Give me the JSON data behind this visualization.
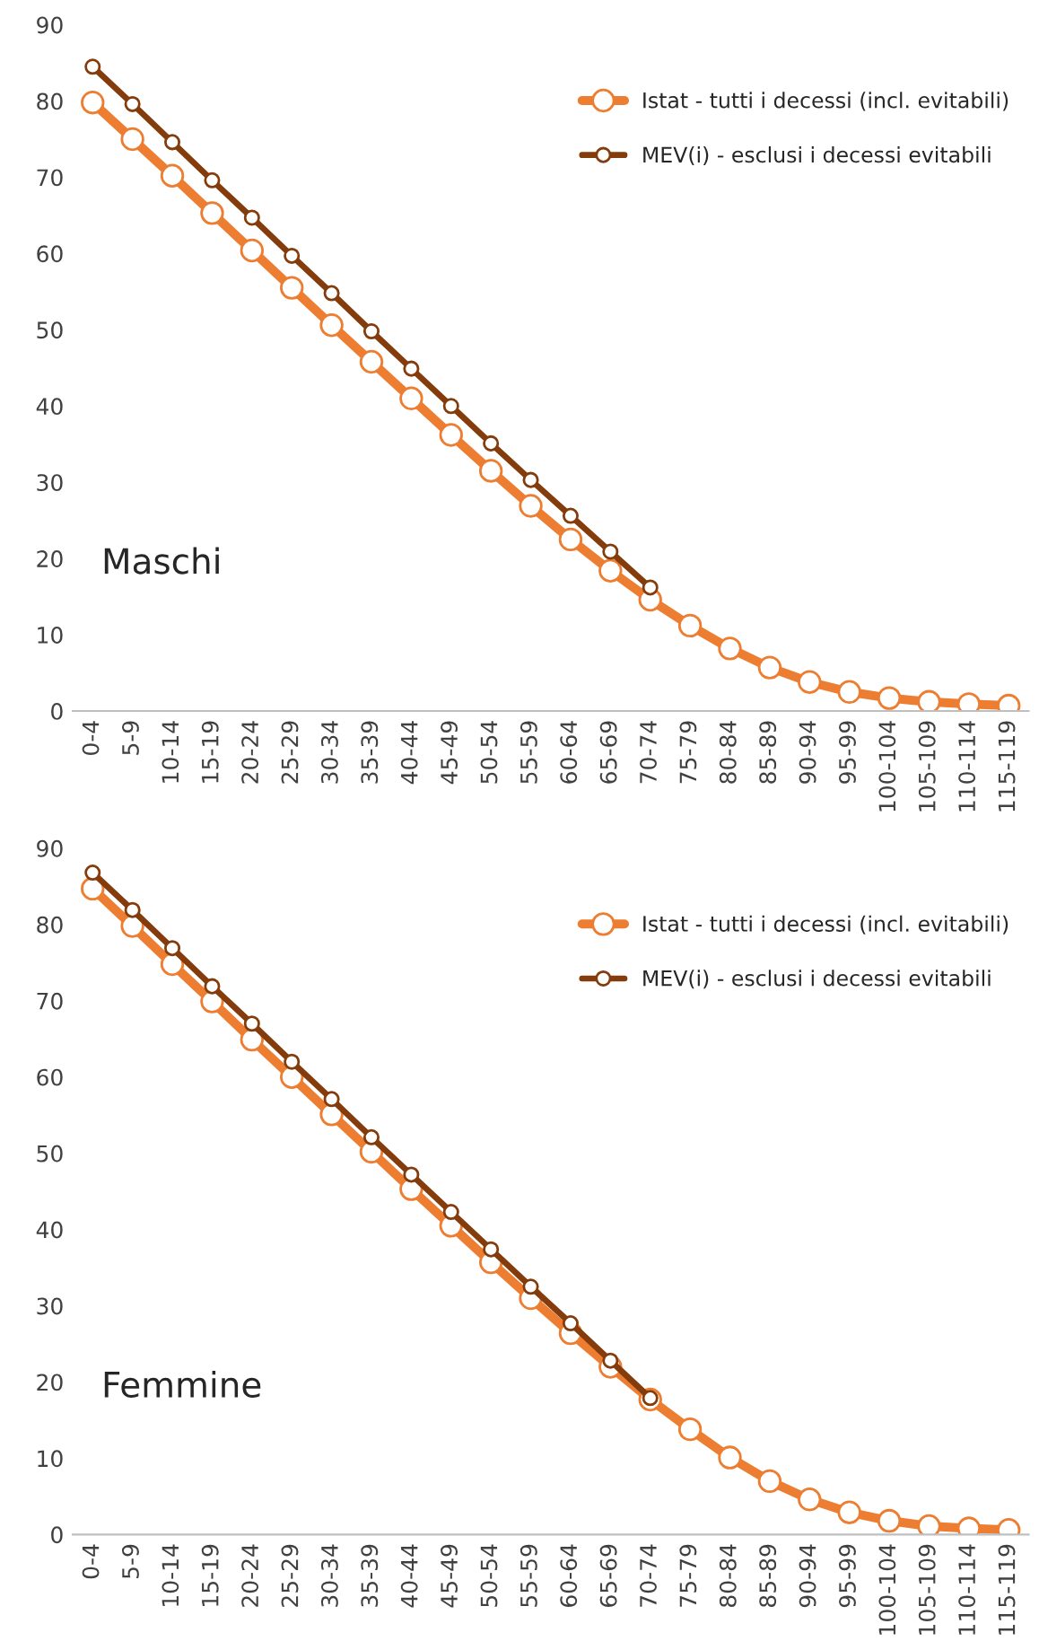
{
  "chart_data": [
    {
      "type": "line",
      "categories": [
        "0-4",
        "5-9",
        "10-14",
        "15-19",
        "20-24",
        "25-29",
        "30-34",
        "35-39",
        "40-44",
        "45-49",
        "50-54",
        "55-59",
        "60-64",
        "65-69",
        "70-74",
        "75-79",
        "80-84",
        "85-89",
        "90-94",
        "95-99",
        "100-104",
        "105-109",
        "110-114",
        "115-119"
      ],
      "series": [
        {
          "name": "Istat - tutti i decessi (incl. evitabili)",
          "color": "#ed7d31",
          "values": [
            79.8,
            75,
            70.2,
            65.3,
            60.4,
            55.5,
            50.6,
            45.8,
            41,
            36.2,
            31.5,
            26.9,
            22.5,
            18.4,
            14.6,
            11.2,
            8.2,
            5.7,
            3.8,
            2.5,
            1.7,
            1.2,
            0.9,
            0.7
          ]
        },
        {
          "name": "MEV(i) - esclusi i decessi evitabili",
          "color": "#843c0c",
          "values": [
            84.5,
            79.6,
            74.6,
            69.6,
            64.7,
            59.7,
            54.8,
            49.8,
            44.9,
            40,
            35.1,
            30.3,
            25.6,
            20.9,
            16.2,
            null,
            null,
            null,
            null,
            null,
            null,
            null,
            null,
            null
          ]
        }
      ],
      "ylim": [
        0,
        90
      ],
      "yticks": [
        0,
        10,
        20,
        30,
        40,
        50,
        60,
        70,
        80,
        90
      ],
      "grid": false,
      "legend": "top right",
      "marker": "circle",
      "line_style": "solid",
      "annotations": [
        "Maschi"
      ]
    },
    {
      "type": "line",
      "categories": [
        "0-4",
        "5-9",
        "10-14",
        "15-19",
        "20-24",
        "25-29",
        "30-34",
        "35-39",
        "40-44",
        "45-49",
        "50-54",
        "55-59",
        "60-64",
        "65-69",
        "70-74",
        "75-79",
        "80-84",
        "85-89",
        "90-94",
        "95-99",
        "100-104",
        "105-109",
        "110-114",
        "115-119"
      ],
      "series": [
        {
          "name": "Istat - tutti i decessi (incl. evitabili)",
          "color": "#ed7d31",
          "values": [
            84.7,
            79.8,
            74.8,
            69.9,
            64.9,
            60,
            55.1,
            50.2,
            45.3,
            40.5,
            35.7,
            31,
            26.4,
            22,
            17.7,
            13.8,
            10.1,
            7,
            4.6,
            2.9,
            1.8,
            1.1,
            0.8,
            0.6
          ]
        },
        {
          "name": "MEV(i) - esclusi i decessi evitabili",
          "color": "#843c0c",
          "values": [
            86.8,
            81.9,
            76.9,
            71.9,
            67,
            62,
            57.1,
            52.1,
            47.2,
            42.3,
            37.4,
            32.5,
            27.7,
            22.8,
            17.9,
            null,
            null,
            null,
            null,
            null,
            null,
            null,
            null,
            null
          ]
        }
      ],
      "ylim": [
        0,
        90
      ],
      "yticks": [
        0,
        10,
        20,
        30,
        40,
        50,
        60,
        70,
        80,
        90
      ],
      "grid": false,
      "legend": "top right",
      "marker": "circle",
      "line_style": "solid",
      "annotations": [
        "Femmine"
      ]
    }
  ]
}
